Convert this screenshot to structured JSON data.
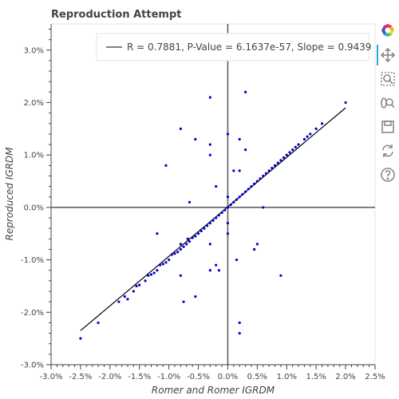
{
  "chart_data": {
    "type": "scatter",
    "title": "Reproduction Attempt",
    "xlabel": "Romer and Romer IGRDM",
    "ylabel": "Reproduced IGRDM",
    "xlim": [
      -0.03,
      0.025
    ],
    "ylim": [
      -0.03,
      0.035
    ],
    "x_ticks": [
      -0.03,
      -0.025,
      -0.02,
      -0.015,
      -0.01,
      -0.005,
      0.0,
      0.005,
      0.01,
      0.015,
      0.02,
      0.025
    ],
    "x_tick_labels": [
      "-3.0%",
      "-2.5%",
      "-2.0%",
      "-1.5%",
      "-1.0%",
      "-0.5%",
      "0.0%",
      "0.5%",
      "1.0%",
      "1.5%",
      "2.0%",
      "2.5%"
    ],
    "y_ticks": [
      -0.03,
      -0.02,
      -0.01,
      0.0,
      0.01,
      0.02,
      0.03
    ],
    "y_tick_labels": [
      "-3.0%",
      "-2.0%",
      "-1.0%",
      "0.0%",
      "1.0%",
      "2.0%",
      "3.0%"
    ],
    "grid": false,
    "legend_position": "top-right",
    "points": [
      [
        -0.025,
        -0.025
      ],
      [
        -0.022,
        -0.022
      ],
      [
        -0.0185,
        -0.018
      ],
      [
        -0.0175,
        -0.017
      ],
      [
        -0.017,
        -0.0175
      ],
      [
        -0.016,
        -0.016
      ],
      [
        -0.0155,
        -0.015
      ],
      [
        -0.015,
        -0.0148
      ],
      [
        -0.014,
        -0.014
      ],
      [
        -0.0135,
        -0.013
      ],
      [
        -0.013,
        -0.0128
      ],
      [
        -0.0125,
        -0.0125
      ],
      [
        -0.012,
        -0.012
      ],
      [
        -0.0115,
        -0.011
      ],
      [
        -0.011,
        -0.0108
      ],
      [
        -0.0105,
        -0.0105
      ],
      [
        -0.01,
        -0.01
      ],
      [
        -0.0095,
        -0.009
      ],
      [
        -0.009,
        -0.0088
      ],
      [
        -0.0085,
        -0.0085
      ],
      [
        -0.008,
        -0.008
      ],
      [
        -0.0075,
        -0.0075
      ],
      [
        -0.007,
        -0.007
      ],
      [
        -0.0068,
        -0.006
      ],
      [
        -0.0065,
        -0.0065
      ],
      [
        -0.006,
        -0.0058
      ],
      [
        -0.0055,
        -0.0055
      ],
      [
        -0.005,
        -0.005
      ],
      [
        -0.0045,
        -0.0045
      ],
      [
        -0.004,
        -0.004
      ],
      [
        -0.0035,
        -0.0035
      ],
      [
        -0.003,
        -0.003
      ],
      [
        -0.0025,
        -0.0025
      ],
      [
        -0.002,
        -0.002
      ],
      [
        -0.0015,
        -0.0015
      ],
      [
        -0.001,
        -0.001
      ],
      [
        -0.0005,
        -0.0005
      ],
      [
        0.0,
        0.0
      ],
      [
        0.0005,
        0.0005
      ],
      [
        0.001,
        0.001
      ],
      [
        0.0015,
        0.0015
      ],
      [
        0.002,
        0.002
      ],
      [
        0.0025,
        0.0025
      ],
      [
        0.003,
        0.003
      ],
      [
        0.0035,
        0.0035
      ],
      [
        0.004,
        0.004
      ],
      [
        0.0045,
        0.0045
      ],
      [
        0.005,
        0.005
      ],
      [
        0.0055,
        0.0055
      ],
      [
        0.006,
        0.006
      ],
      [
        0.0065,
        0.0065
      ],
      [
        0.007,
        0.007
      ],
      [
        0.0075,
        0.0075
      ],
      [
        0.008,
        0.008
      ],
      [
        0.0085,
        0.0085
      ],
      [
        0.009,
        0.009
      ],
      [
        0.0095,
        0.0095
      ],
      [
        0.01,
        0.01
      ],
      [
        0.0105,
        0.0105
      ],
      [
        0.011,
        0.011
      ],
      [
        0.0115,
        0.0115
      ],
      [
        0.012,
        0.012
      ],
      [
        0.013,
        0.013
      ],
      [
        0.0135,
        0.0135
      ],
      [
        0.014,
        0.014
      ],
      [
        0.015,
        0.015
      ],
      [
        0.016,
        0.016
      ],
      [
        0.02,
        0.02
      ],
      [
        -0.003,
        0.021
      ],
      [
        0.003,
        0.022
      ],
      [
        -0.008,
        0.015
      ],
      [
        -0.0055,
        0.013
      ],
      [
        -0.003,
        0.012
      ],
      [
        -0.003,
        0.01
      ],
      [
        0.0,
        0.014
      ],
      [
        0.002,
        0.013
      ],
      [
        0.003,
        0.011
      ],
      [
        -0.0105,
        0.008
      ],
      [
        0.001,
        0.007
      ],
      [
        0.002,
        0.007
      ],
      [
        -0.002,
        0.004
      ],
      [
        0.0,
        0.002
      ],
      [
        0.006,
        0.0
      ],
      [
        0.0,
        -0.003
      ],
      [
        0.0,
        -0.005
      ],
      [
        -0.012,
        -0.005
      ],
      [
        -0.008,
        -0.007
      ],
      [
        -0.003,
        -0.007
      ],
      [
        0.005,
        -0.007
      ],
      [
        0.0045,
        -0.008
      ],
      [
        0.0015,
        -0.01
      ],
      [
        -0.002,
        -0.011
      ],
      [
        -0.003,
        -0.012
      ],
      [
        -0.008,
        -0.013
      ],
      [
        -0.0055,
        -0.017
      ],
      [
        -0.0075,
        -0.018
      ],
      [
        0.009,
        -0.013
      ],
      [
        0.002,
        -0.022
      ],
      [
        0.002,
        -0.024
      ],
      [
        -0.0065,
        0.001
      ],
      [
        -0.0015,
        -0.012
      ]
    ],
    "regression_line": {
      "x": [
        -0.025,
        0.02
      ],
      "y": [
        -0.0235,
        0.019
      ]
    },
    "legend": [
      {
        "label": "R = 0.7881, P-Value = 6.1637e-57, Slope = 0.9439",
        "color": "#000000"
      }
    ],
    "colors": {
      "points": "#0000cc",
      "line": "#000000",
      "zero_lines": "#555555",
      "axes": "#444444"
    }
  },
  "toolbar": {
    "tools": [
      {
        "name": "bokeh-logo-icon",
        "active": false
      },
      {
        "name": "pan-icon",
        "active": true
      },
      {
        "name": "box-zoom-icon",
        "active": false
      },
      {
        "name": "wheel-zoom-icon",
        "active": false
      },
      {
        "name": "save-icon",
        "active": false
      },
      {
        "name": "reset-icon",
        "active": false
      },
      {
        "name": "help-icon",
        "active": false
      }
    ]
  }
}
